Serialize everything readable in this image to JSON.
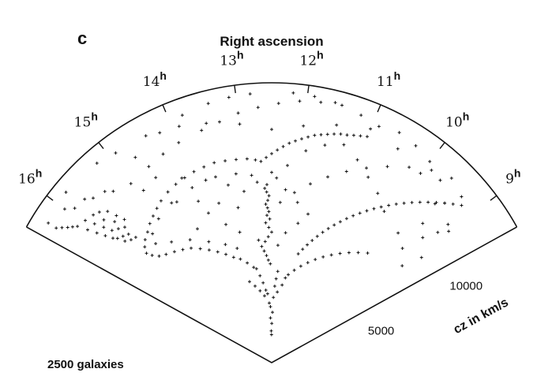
{
  "panel_label": "c",
  "title": "Right ascension",
  "galaxy_count_label": "2500 galaxies",
  "radial_axis_label": "cz  in km/s",
  "colors": {
    "ink": "#111111",
    "background": "#ffffff"
  },
  "chart_data": {
    "type": "scatter",
    "coordinate_system": "polar-wedge",
    "title": "Right ascension",
    "angular_axis": {
      "label": "Right ascension",
      "unit": "h",
      "range": [
        8.5,
        16.5
      ],
      "ticks": [
        {
          "value": 16,
          "base": "16",
          "sup": "h"
        },
        {
          "value": 15,
          "base": "15",
          "sup": "h"
        },
        {
          "value": 14,
          "base": "14",
          "sup": "h"
        },
        {
          "value": 13,
          "base": "13",
          "sup": "h"
        },
        {
          "value": 12,
          "base": "12",
          "sup": "h"
        },
        {
          "value": 11,
          "base": "11",
          "sup": "h"
        },
        {
          "value": 10,
          "base": "10",
          "sup": "h"
        },
        {
          "value": 9,
          "base": "9",
          "sup": "h"
        }
      ]
    },
    "radial_axis": {
      "label": "cz  in km/s",
      "range": [
        0,
        15000
      ],
      "ticks": [
        {
          "value": 5000,
          "label": "5000"
        },
        {
          "value": 10000,
          "label": "10000"
        }
      ]
    },
    "annotation": "2500 galaxies",
    "marker": "+",
    "points": [
      [
        12.52,
        1500
      ],
      [
        12.55,
        1700
      ],
      [
        12.49,
        2100
      ],
      [
        12.6,
        2400
      ],
      [
        12.44,
        2700
      ],
      [
        12.58,
        3000
      ],
      [
        12.65,
        3200
      ],
      [
        12.4,
        3500
      ],
      [
        12.72,
        3700
      ],
      [
        12.8,
        3900
      ],
      [
        12.35,
        4100
      ],
      [
        12.9,
        4300
      ],
      [
        12.3,
        4500
      ],
      [
        13.0,
        4700
      ],
      [
        12.25,
        4900
      ],
      [
        13.1,
        5100
      ],
      [
        12.55,
        5300
      ],
      [
        12.62,
        5500
      ],
      [
        12.68,
        5750
      ],
      [
        12.75,
        6000
      ],
      [
        12.82,
        6250
      ],
      [
        12.7,
        6500
      ],
      [
        12.6,
        6750
      ],
      [
        12.5,
        7000
      ],
      [
        12.58,
        7250
      ],
      [
        12.66,
        7500
      ],
      [
        12.55,
        7700
      ],
      [
        12.62,
        7900
      ],
      [
        12.57,
        8100
      ],
      [
        12.6,
        8300
      ],
      [
        12.64,
        8500
      ],
      [
        12.59,
        8700
      ],
      [
        12.56,
        8950
      ],
      [
        12.61,
        9150
      ],
      [
        12.65,
        9350
      ],
      [
        12.6,
        9550
      ],
      [
        13.2,
        5200
      ],
      [
        13.4,
        5500
      ],
      [
        13.6,
        5800
      ],
      [
        13.8,
        6000
      ],
      [
        14.0,
        6300
      ],
      [
        14.2,
        6600
      ],
      [
        14.4,
        6900
      ],
      [
        14.6,
        7200
      ],
      [
        14.8,
        7500
      ],
      [
        15.0,
        7700
      ],
      [
        15.2,
        7900
      ],
      [
        15.4,
        8100
      ],
      [
        15.55,
        8300
      ],
      [
        15.65,
        8600
      ],
      [
        15.7,
        8900
      ],
      [
        15.62,
        9200
      ],
      [
        15.5,
        9450
      ],
      [
        15.35,
        9650
      ],
      [
        15.2,
        9900
      ],
      [
        15.05,
        10100
      ],
      [
        14.9,
        10300
      ],
      [
        14.75,
        10500
      ],
      [
        14.55,
        10700
      ],
      [
        14.35,
        10850
      ],
      [
        14.15,
        10950
      ],
      [
        13.95,
        11050
      ],
      [
        13.75,
        11100
      ],
      [
        13.55,
        11150
      ],
      [
        13.35,
        11100
      ],
      [
        13.15,
        11050
      ],
      [
        12.95,
        11000
      ],
      [
        12.8,
        10900
      ],
      [
        15.6,
        9900
      ],
      [
        15.7,
        10000
      ],
      [
        15.8,
        10200
      ],
      [
        15.65,
        10300
      ],
      [
        15.75,
        10450
      ],
      [
        15.85,
        10600
      ],
      [
        15.6,
        10700
      ],
      [
        15.9,
        10800
      ],
      [
        15.7,
        10900
      ],
      [
        15.5,
        11000
      ],
      [
        15.8,
        11100
      ],
      [
        15.95,
        11200
      ],
      [
        15.65,
        11300
      ],
      [
        15.55,
        11450
      ],
      [
        15.85,
        11550
      ],
      [
        16.0,
        11650
      ],
      [
        15.75,
        11800
      ],
      [
        15.6,
        11950
      ],
      [
        15.9,
        12050
      ],
      [
        16.05,
        12150
      ],
      [
        15.7,
        12250
      ],
      [
        15.8,
        12400
      ],
      [
        15.95,
        12550
      ],
      [
        16.1,
        12700
      ],
      [
        16.15,
        12900
      ],
      [
        16.2,
        13100
      ],
      [
        16.25,
        13350
      ],
      [
        16.3,
        13600
      ],
      [
        12.7,
        10800
      ],
      [
        12.6,
        11000
      ],
      [
        12.5,
        11200
      ],
      [
        12.4,
        11400
      ],
      [
        12.3,
        11600
      ],
      [
        12.2,
        11800
      ],
      [
        12.1,
        11950
      ],
      [
        12.0,
        12100
      ],
      [
        11.9,
        12250
      ],
      [
        11.8,
        12400
      ],
      [
        11.7,
        12500
      ],
      [
        11.6,
        12600
      ],
      [
        11.5,
        12700
      ],
      [
        11.4,
        12800
      ],
      [
        11.3,
        12850
      ],
      [
        11.2,
        12950
      ],
      [
        11.1,
        13050
      ],
      [
        11.0,
        13150
      ],
      [
        11.6,
        6000
      ],
      [
        11.5,
        6300
      ],
      [
        11.4,
        6600
      ],
      [
        11.3,
        6900
      ],
      [
        11.2,
        7200
      ],
      [
        11.1,
        7500
      ],
      [
        11.0,
        7800
      ],
      [
        10.9,
        8100
      ],
      [
        10.8,
        8400
      ],
      [
        10.7,
        8700
      ],
      [
        10.6,
        9000
      ],
      [
        10.5,
        9300
      ],
      [
        10.4,
        9600
      ],
      [
        10.3,
        9900
      ],
      [
        10.2,
        10200
      ],
      [
        10.1,
        10500
      ],
      [
        10.0,
        10800
      ],
      [
        9.9,
        11100
      ],
      [
        9.8,
        11400
      ],
      [
        9.7,
        11700
      ],
      [
        9.6,
        12000
      ],
      [
        9.5,
        12300
      ],
      [
        9.4,
        12600
      ],
      [
        9.3,
        12900
      ],
      [
        9.2,
        13200
      ],
      [
        11.8,
        4800
      ],
      [
        11.6,
        5100
      ],
      [
        11.4,
        5400
      ],
      [
        11.2,
        5700
      ],
      [
        11.0,
        6000
      ],
      [
        10.8,
        6300
      ],
      [
        10.6,
        6600
      ],
      [
        10.4,
        6900
      ],
      [
        10.2,
        7200
      ],
      [
        10.0,
        7500
      ],
      [
        9.8,
        7800
      ],
      [
        13.6,
        13000
      ],
      [
        13.3,
        13200
      ],
      [
        13.0,
        13500
      ],
      [
        12.7,
        13700
      ],
      [
        12.4,
        13900
      ],
      [
        12.1,
        14100
      ],
      [
        11.8,
        14200
      ],
      [
        11.5,
        14300
      ],
      [
        14.0,
        12800
      ],
      [
        14.3,
        12600
      ],
      [
        14.6,
        12400
      ],
      [
        11.2,
        14100
      ],
      [
        10.9,
        13900
      ],
      [
        9.2,
        10500
      ],
      [
        9.4,
        11000
      ],
      [
        9.1,
        12000
      ],
      [
        9.3,
        13500
      ],
      [
        9.6,
        13800
      ],
      [
        9.9,
        13400
      ],
      [
        10.2,
        12800
      ],
      [
        10.5,
        12200
      ],
      [
        10.8,
        11600
      ],
      [
        11.1,
        11000
      ],
      [
        11.4,
        10400
      ],
      [
        11.7,
        9800
      ],
      [
        12.0,
        9200
      ],
      [
        12.3,
        8600
      ],
      [
        13.3,
        8500
      ],
      [
        13.7,
        9000
      ],
      [
        14.1,
        9500
      ],
      [
        14.5,
        10000
      ],
      [
        14.9,
        11500
      ],
      [
        15.3,
        12500
      ],
      [
        15.6,
        13000
      ],
      [
        15.9,
        13400
      ],
      [
        14.7,
        13200
      ],
      [
        14.2,
        13700
      ],
      [
        13.8,
        14100
      ],
      [
        13.4,
        14300
      ],
      [
        13.1,
        14400
      ],
      [
        12.8,
        14450
      ],
      [
        12.2,
        14500
      ],
      [
        11.9,
        14450
      ],
      [
        11.6,
        14350
      ],
      [
        10.6,
        14100
      ],
      [
        10.3,
        13950
      ],
      [
        10.0,
        13700
      ],
      [
        9.7,
        13300
      ],
      [
        9.4,
        12600
      ],
      [
        9.1,
        11300
      ],
      [
        8.9,
        9800
      ],
      [
        9.0,
        8700
      ],
      [
        9.3,
        9300
      ],
      [
        9.6,
        9700
      ],
      [
        10.1,
        10100
      ],
      [
        10.4,
        10700
      ],
      [
        10.7,
        11200
      ],
      [
        11.0,
        11800
      ],
      [
        11.3,
        12300
      ],
      [
        11.6,
        12000
      ],
      [
        11.9,
        11500
      ],
      [
        12.2,
        10600
      ],
      [
        12.5,
        10200
      ],
      [
        12.8,
        9700
      ],
      [
        13.1,
        9300
      ],
      [
        13.4,
        9800
      ],
      [
        13.8,
        10400
      ],
      [
        14.2,
        11000
      ],
      [
        14.6,
        11700
      ],
      [
        15.0,
        12200
      ],
      [
        15.4,
        12800
      ],
      [
        15.7,
        13300
      ],
      [
        16.0,
        13800
      ],
      [
        16.3,
        14100
      ],
      [
        15.8,
        14300
      ],
      [
        15.2,
        14200
      ],
      [
        14.9,
        14000
      ],
      [
        14.4,
        13900
      ],
      [
        13.9,
        13600
      ],
      [
        13.5,
        13300
      ],
      [
        13.0,
        12900
      ],
      [
        12.5,
        12500
      ],
      [
        12.0,
        12800
      ],
      [
        11.5,
        13200
      ],
      [
        11.0,
        13600
      ],
      [
        10.5,
        13300
      ],
      [
        10.0,
        12900
      ],
      [
        9.5,
        12200
      ],
      [
        9.0,
        11800
      ],
      [
        12.9,
        3600
      ],
      [
        13.1,
        3900
      ],
      [
        13.3,
        4200
      ],
      [
        13.5,
        4500
      ],
      [
        12.2,
        3800
      ],
      [
        12.0,
        4200
      ],
      [
        11.9,
        4600
      ],
      [
        13.6,
        6400
      ],
      [
        13.9,
        6800
      ],
      [
        14.3,
        7300
      ],
      [
        14.7,
        7900
      ],
      [
        15.1,
        8400
      ],
      [
        15.4,
        8900
      ],
      [
        15.3,
        9400
      ],
      [
        15.0,
        9800
      ],
      [
        14.6,
        10100
      ],
      [
        14.1,
        10300
      ],
      [
        13.6,
        10400
      ],
      [
        13.2,
        10300
      ],
      [
        12.9,
        10100
      ],
      [
        14.4,
        8200
      ],
      [
        14.0,
        8700
      ],
      [
        13.7,
        7800
      ],
      [
        13.4,
        7200
      ],
      [
        12.9,
        6600
      ],
      [
        12.3,
        6300
      ],
      [
        12.1,
        7000
      ],
      [
        11.8,
        7600
      ],
      [
        11.6,
        8200
      ],
      [
        11.9,
        8700
      ],
      [
        12.2,
        9300
      ],
      [
        12.4,
        9900
      ]
    ]
  }
}
